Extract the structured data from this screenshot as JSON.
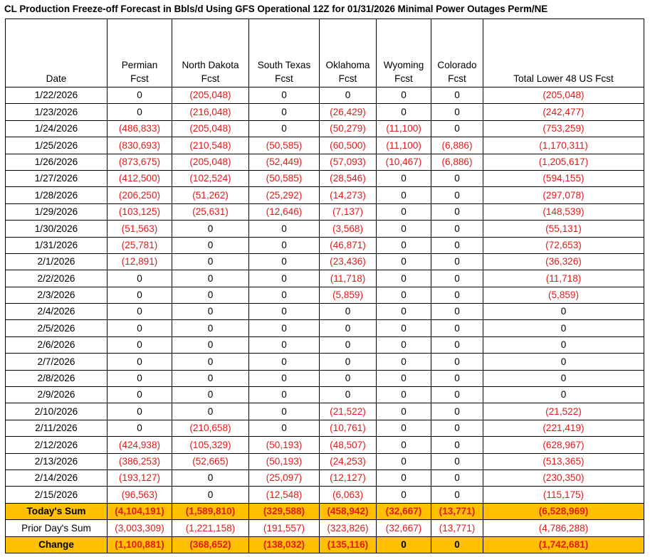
{
  "title": "CL Production Freeze-off Forecast in Bbls/d Using GFS Operational 12Z for 01/31/2026 Minimal Power Outages Perm/NE",
  "columns": [
    {
      "line1": "",
      "line2": "Date"
    },
    {
      "line1": "Permian",
      "line2": "Fcst"
    },
    {
      "line1": "North Dakota",
      "line2": "Fcst"
    },
    {
      "line1": "South Texas",
      "line2": "Fcst"
    },
    {
      "line1": "Oklahoma",
      "line2": "Fcst"
    },
    {
      "line1": "Wyoming",
      "line2": "Fcst"
    },
    {
      "line1": "Colorado",
      "line2": "Fcst"
    },
    {
      "line1": "",
      "line2": "Total Lower 48 US Fcst"
    }
  ],
  "rows": [
    [
      "1/22/2026",
      "0",
      "(205,048)",
      "0",
      "0",
      "0",
      "0",
      "(205,048)"
    ],
    [
      "1/23/2026",
      "0",
      "(216,048)",
      "0",
      "(26,429)",
      "0",
      "0",
      "(242,477)"
    ],
    [
      "1/24/2026",
      "(486,833)",
      "(205,048)",
      "0",
      "(50,279)",
      "(11,100)",
      "0",
      "(753,259)"
    ],
    [
      "1/25/2026",
      "(830,693)",
      "(210,548)",
      "(50,585)",
      "(60,500)",
      "(11,100)",
      "(6,886)",
      "(1,170,311)"
    ],
    [
      "1/26/2026",
      "(873,675)",
      "(205,048)",
      "(52,449)",
      "(57,093)",
      "(10,467)",
      "(6,886)",
      "(1,205,617)"
    ],
    [
      "1/27/2026",
      "(412,500)",
      "(102,524)",
      "(50,585)",
      "(28,546)",
      "0",
      "0",
      "(594,155)"
    ],
    [
      "1/28/2026",
      "(206,250)",
      "(51,262)",
      "(25,292)",
      "(14,273)",
      "0",
      "0",
      "(297,078)"
    ],
    [
      "1/29/2026",
      "(103,125)",
      "(25,631)",
      "(12,646)",
      "(7,137)",
      "0",
      "0",
      "(148,539)"
    ],
    [
      "1/30/2026",
      "(51,563)",
      "0",
      "0",
      "(3,568)",
      "0",
      "0",
      "(55,131)"
    ],
    [
      "1/31/2026",
      "(25,781)",
      "0",
      "0",
      "(46,871)",
      "0",
      "0",
      "(72,653)"
    ],
    [
      "2/1/2026",
      "(12,891)",
      "0",
      "0",
      "(23,436)",
      "0",
      "0",
      "(36,326)"
    ],
    [
      "2/2/2026",
      "0",
      "0",
      "0",
      "(11,718)",
      "0",
      "0",
      "(11,718)"
    ],
    [
      "2/3/2026",
      "0",
      "0",
      "0",
      "(5,859)",
      "0",
      "0",
      "(5,859)"
    ],
    [
      "2/4/2026",
      "0",
      "0",
      "0",
      "0",
      "0",
      "0",
      "0"
    ],
    [
      "2/5/2026",
      "0",
      "0",
      "0",
      "0",
      "0",
      "0",
      "0"
    ],
    [
      "2/6/2026",
      "0",
      "0",
      "0",
      "0",
      "0",
      "0",
      "0"
    ],
    [
      "2/7/2026",
      "0",
      "0",
      "0",
      "0",
      "0",
      "0",
      "0"
    ],
    [
      "2/8/2026",
      "0",
      "0",
      "0",
      "0",
      "0",
      "0",
      "0"
    ],
    [
      "2/9/2026",
      "0",
      "0",
      "0",
      "0",
      "0",
      "0",
      "0"
    ],
    [
      "2/10/2026",
      "0",
      "0",
      "0",
      "(21,522)",
      "0",
      "0",
      "(21,522)"
    ],
    [
      "2/11/2026",
      "0",
      "(210,658)",
      "0",
      "(10,761)",
      "0",
      "0",
      "(221,419)"
    ],
    [
      "2/12/2026",
      "(424,938)",
      "(105,329)",
      "(50,193)",
      "(48,507)",
      "0",
      "0",
      "(628,967)"
    ],
    [
      "2/13/2026",
      "(386,253)",
      "(52,665)",
      "(50,193)",
      "(24,253)",
      "0",
      "0",
      "(513,365)"
    ],
    [
      "2/14/2026",
      "(193,127)",
      "0",
      "(25,097)",
      "(12,127)",
      "0",
      "0",
      "(230,350)"
    ],
    [
      "2/15/2026",
      "(96,563)",
      "0",
      "(12,548)",
      "(6,063)",
      "0",
      "0",
      "(115,175)"
    ]
  ],
  "summary": [
    {
      "kind": "sum",
      "cells": [
        "Today's Sum",
        "(4,104,191)",
        "(1,589,810)",
        "(329,588)",
        "(458,942)",
        "(32,667)",
        "(13,771)",
        "(6,528,969)"
      ]
    },
    {
      "kind": "prior",
      "cells": [
        "Prior Day's Sum",
        "(3,003,309)",
        "(1,221,158)",
        "(191,557)",
        "(323,826)",
        "(32,667)",
        "(13,771)",
        "(4,786,288)"
      ]
    },
    {
      "kind": "sum",
      "cells": [
        "Change",
        "(1,100,881)",
        "(368,652)",
        "(138,032)",
        "(135,116)",
        "0",
        "0",
        "(1,742,681)"
      ]
    }
  ],
  "colors": {
    "negative": "#e01b1b",
    "highlight": "#ffc000",
    "text": "#000000"
  }
}
